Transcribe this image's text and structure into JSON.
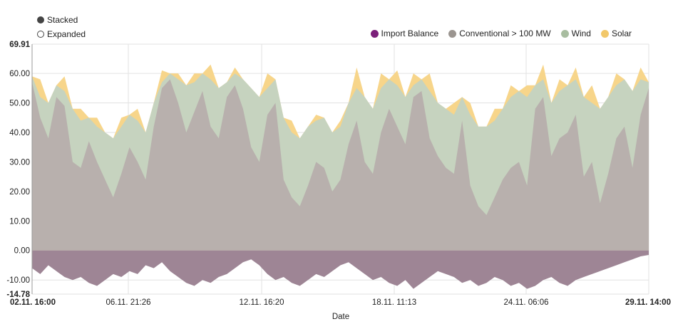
{
  "toggles": {
    "stacked": "Stacked",
    "expanded": "Expanded"
  },
  "chart_data": {
    "type": "area",
    "xlabel": "Date",
    "ylabel": "",
    "ylim": [
      -14.78,
      69.91
    ],
    "y_ticks": [
      "69.91",
      "60.00",
      "50.00",
      "40.00",
      "30.00",
      "20.00",
      "10.00",
      "0.00",
      "-10.00",
      "-14.78"
    ],
    "y_tick_values": [
      69.91,
      60,
      50,
      40,
      30,
      20,
      10,
      0,
      -10,
      -14.78
    ],
    "x_ticks": [
      "02.11. 16:00",
      "06.11. 21:26",
      "12.11. 16:20",
      "18.11. 11:13",
      "24.11. 06:06",
      "29.11. 14:00"
    ],
    "grid": true,
    "legend_position": "top-right",
    "series": [
      {
        "name": "Import Balance",
        "color": "#7b1f7a",
        "fill": "#9e8595",
        "values": [
          -6,
          -8,
          -5,
          -7,
          -9,
          -10,
          -9,
          -11,
          -12,
          -10,
          -8,
          -9,
          -7,
          -8,
          -5,
          -6,
          -4,
          -7,
          -9,
          -11,
          -12,
          -10,
          -11,
          -9,
          -8,
          -6,
          -4,
          -3,
          -5,
          -8,
          -10,
          -9,
          -11,
          -12,
          -10,
          -8,
          -9,
          -7,
          -5,
          -4,
          -6,
          -8,
          -10,
          -9,
          -11,
          -12,
          -10,
          -13,
          -11,
          -9,
          -7,
          -8,
          -9,
          -11,
          -10,
          -12,
          -11,
          -9,
          -10,
          -12,
          -11,
          -13,
          -12,
          -10,
          -9,
          -11,
          -12,
          -10,
          -9,
          -8,
          -7,
          -6,
          -5,
          -4,
          -3,
          -2,
          -1.5
        ]
      },
      {
        "name": "Conventional > 100 MW",
        "color": "#9b9590",
        "fill": "#b8b0ad",
        "values": [
          57,
          45,
          38,
          52,
          49,
          30,
          28,
          37,
          30,
          24,
          18,
          26,
          35,
          30,
          24,
          42,
          55,
          58,
          50,
          40,
          47,
          54,
          42,
          38,
          52,
          56,
          48,
          35,
          30,
          46,
          50,
          24,
          18,
          15,
          22,
          30,
          28,
          20,
          24,
          36,
          44,
          30,
          26,
          40,
          48,
          42,
          36,
          52,
          54,
          38,
          32,
          28,
          26,
          44,
          22,
          15,
          12,
          18,
          24,
          28,
          30,
          22,
          48,
          52,
          32,
          38,
          40,
          46,
          25,
          30,
          16,
          26,
          38,
          42,
          28,
          46,
          55
        ]
      },
      {
        "name": "Wind",
        "color": "#a8bda0",
        "fill": "#c6d3bf",
        "values": [
          59,
          52,
          50,
          56,
          54,
          48,
          44,
          45,
          42,
          40,
          38,
          42,
          46,
          44,
          40,
          50,
          57,
          60,
          58,
          56,
          57,
          60,
          58,
          55,
          57,
          60,
          58,
          55,
          52,
          55,
          58,
          45,
          40,
          38,
          42,
          44,
          45,
          40,
          42,
          50,
          55,
          52,
          48,
          55,
          58,
          56,
          52,
          56,
          58,
          54,
          50,
          48,
          46,
          52,
          46,
          42,
          42,
          44,
          48,
          52,
          54,
          52,
          56,
          58,
          50,
          54,
          56,
          58,
          52,
          50,
          48,
          52,
          56,
          58,
          54,
          58,
          57
        ]
      },
      {
        "name": "Solar",
        "color": "#f2c86a",
        "fill": "#f7d58a",
        "values": [
          59,
          58,
          50,
          56,
          59,
          48,
          48,
          45,
          45,
          40,
          38,
          45,
          46,
          48,
          40,
          50,
          61,
          60,
          60,
          56,
          60,
          60,
          63,
          55,
          57,
          62,
          58,
          55,
          52,
          60,
          58,
          45,
          44,
          38,
          42,
          46,
          45,
          40,
          44,
          50,
          62,
          52,
          48,
          60,
          58,
          61,
          52,
          60,
          58,
          60,
          50,
          48,
          50,
          52,
          50,
          42,
          42,
          48,
          48,
          56,
          54,
          56,
          56,
          63,
          50,
          58,
          56,
          62,
          52,
          56,
          48,
          52,
          60,
          58,
          54,
          62,
          57
        ]
      }
    ]
  }
}
